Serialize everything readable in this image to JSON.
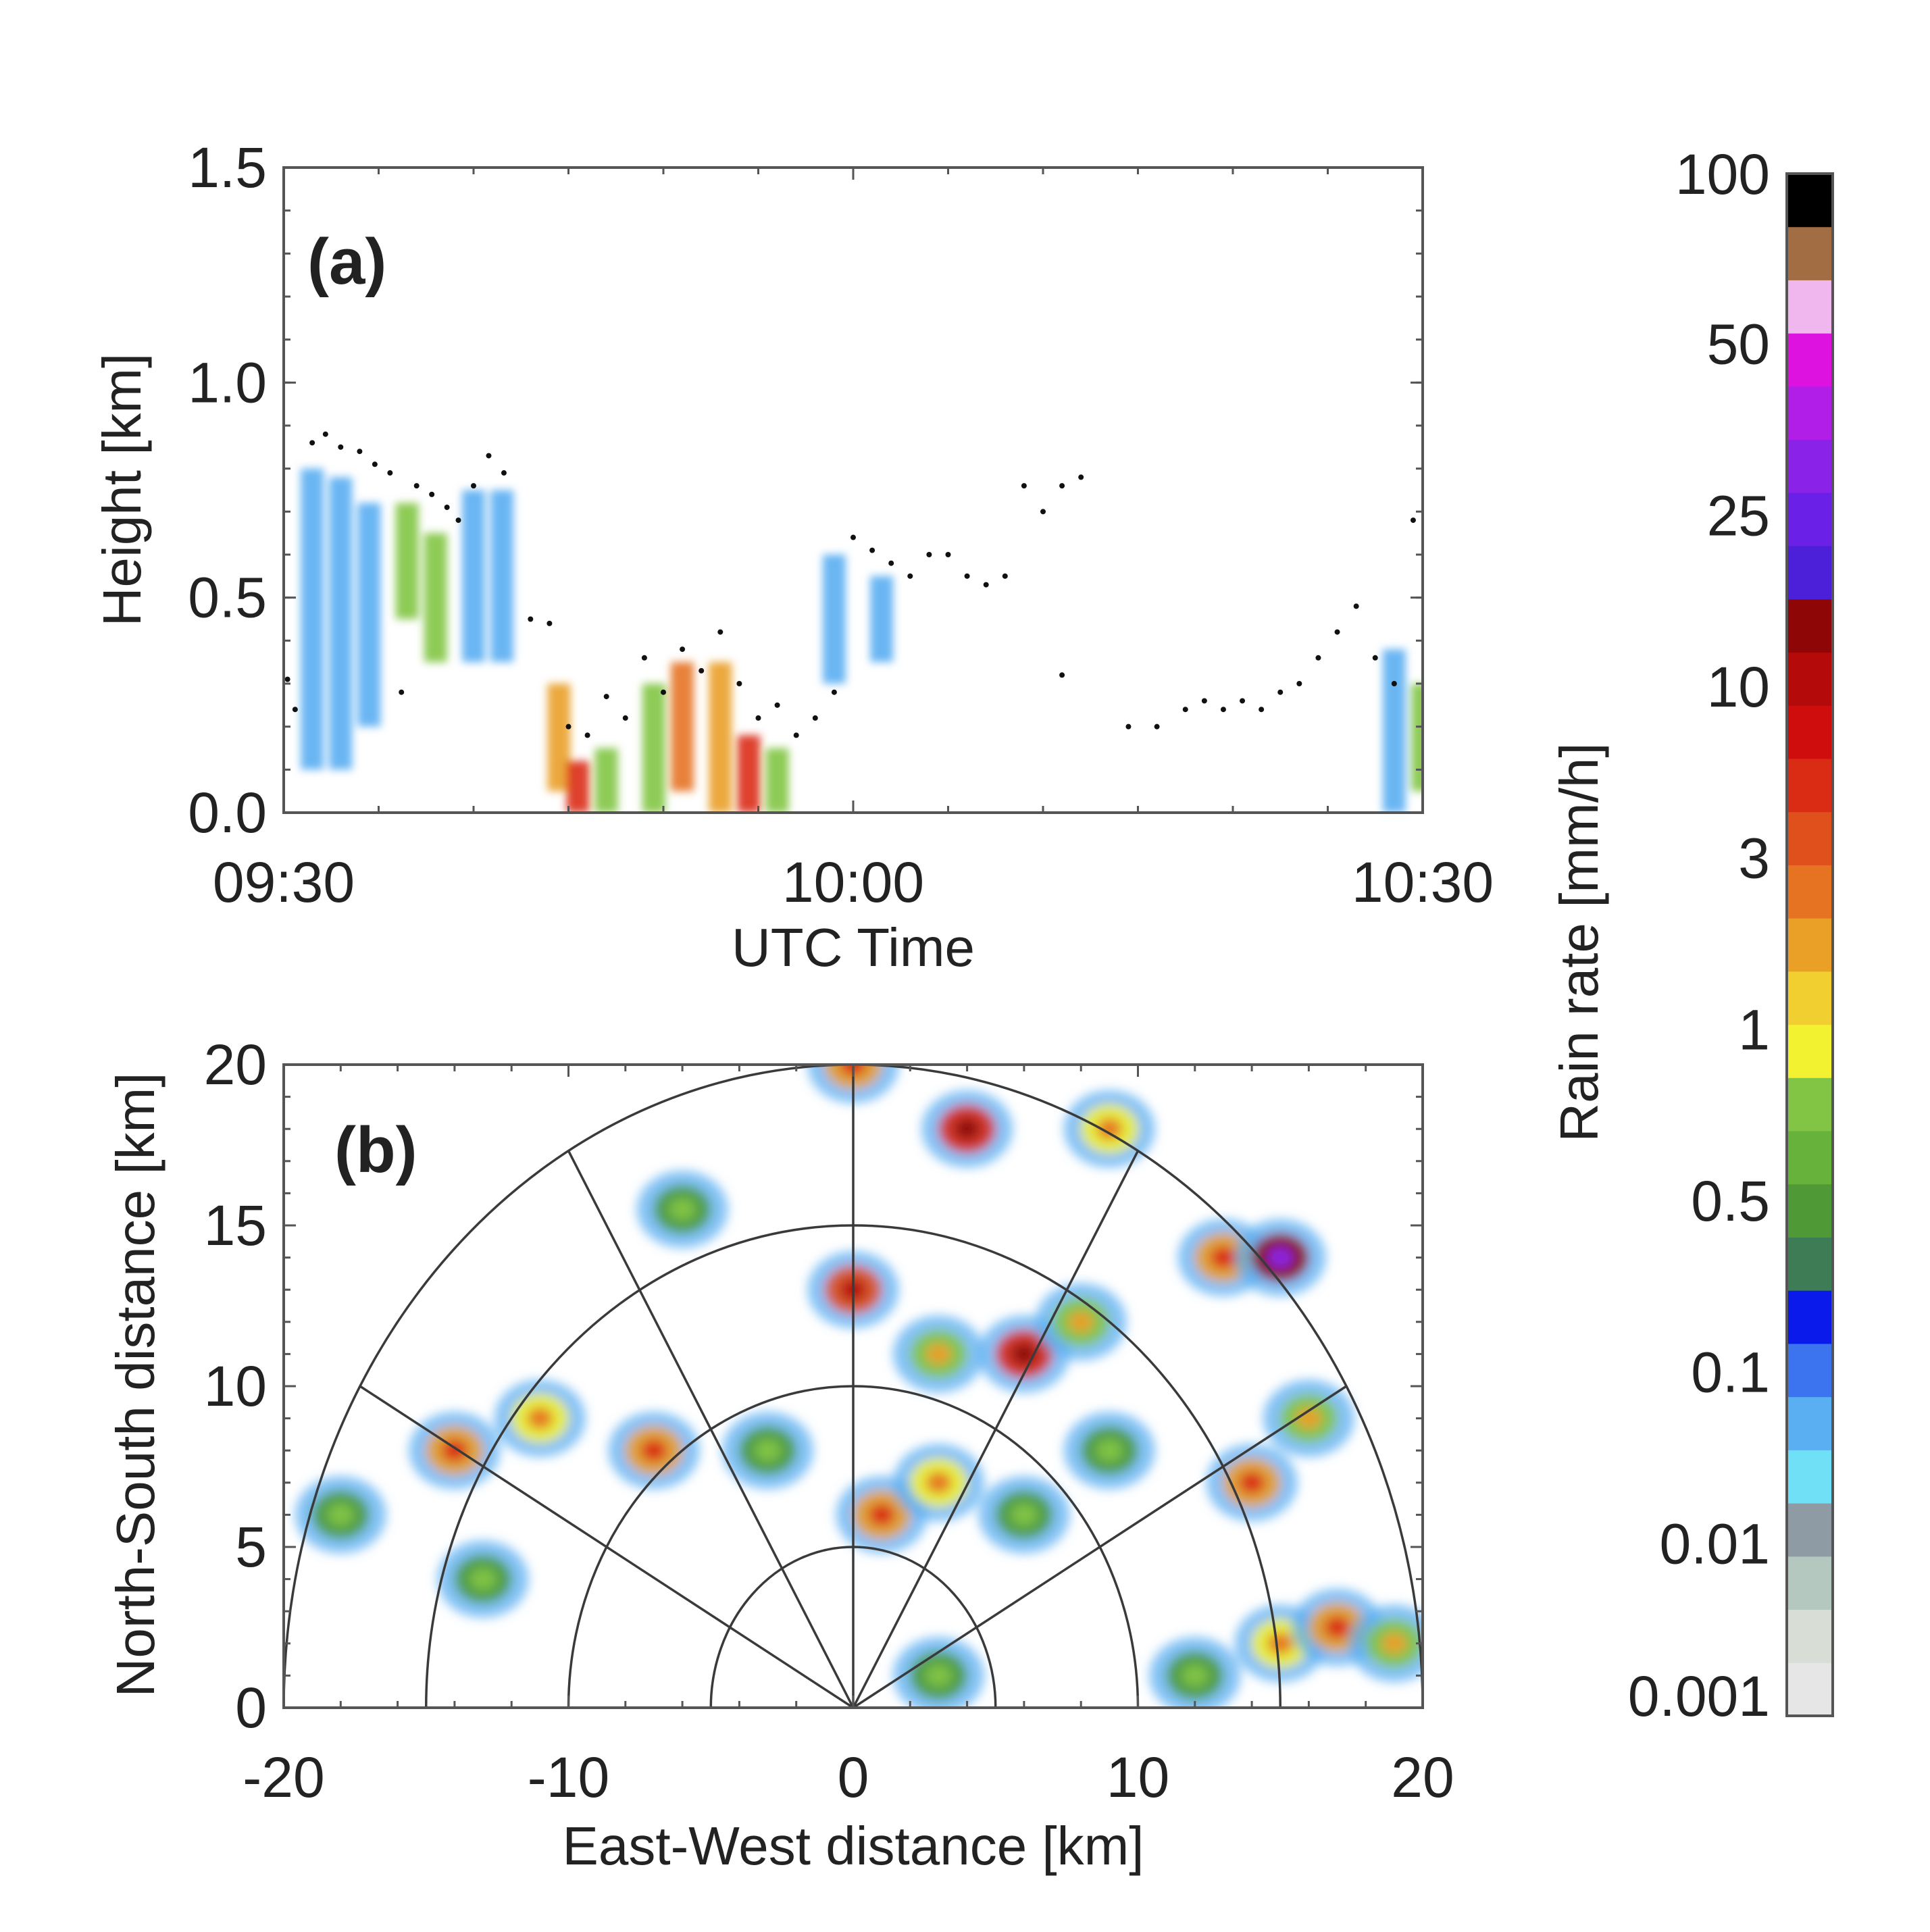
{
  "chart_data": [
    {
      "panel": "(a)",
      "type": "heatmap",
      "xlabel": "UTC Time",
      "ylabel": "Height [km]",
      "x_ticks": [
        "09:30",
        "10:00",
        "10:30"
      ],
      "y_ticks": [
        "0.0",
        "0.5",
        "1.0",
        "1.5"
      ],
      "xlim_minutes_from_0930": [
        0,
        60
      ],
      "ylim": [
        0,
        1.5
      ],
      "colorscale_var": "rain_rate_mm_per_h",
      "cells": [
        {
          "t": 1.5,
          "h_bottom": 0.1,
          "h_top": 0.8,
          "rate": 0.01
        },
        {
          "t": 3.0,
          "h_bottom": 0.1,
          "h_top": 0.78,
          "rate": 0.01
        },
        {
          "t": 4.5,
          "h_bottom": 0.2,
          "h_top": 0.72,
          "rate": 0.01
        },
        {
          "t": 6.5,
          "h_bottom": 0.45,
          "h_top": 0.72,
          "rate": 0.1
        },
        {
          "t": 8.0,
          "h_bottom": 0.35,
          "h_top": 0.65,
          "rate": 0.1
        },
        {
          "t": 10.0,
          "h_bottom": 0.35,
          "h_top": 0.75,
          "rate": 0.01
        },
        {
          "t": 11.5,
          "h_bottom": 0.35,
          "h_top": 0.75,
          "rate": 0.01
        },
        {
          "t": 14.5,
          "h_bottom": 0.05,
          "h_top": 0.3,
          "rate": 0.3
        },
        {
          "t": 15.5,
          "h_bottom": 0.0,
          "h_top": 0.12,
          "rate": 1
        },
        {
          "t": 17.0,
          "h_bottom": 0.0,
          "h_top": 0.15,
          "rate": 0.1
        },
        {
          "t": 19.5,
          "h_bottom": 0.0,
          "h_top": 0.3,
          "rate": 0.1
        },
        {
          "t": 21.0,
          "h_bottom": 0.05,
          "h_top": 0.35,
          "rate": 0.5
        },
        {
          "t": 23.0,
          "h_bottom": 0.0,
          "h_top": 0.35,
          "rate": 0.3
        },
        {
          "t": 24.5,
          "h_bottom": 0.0,
          "h_top": 0.18,
          "rate": 1
        },
        {
          "t": 26.0,
          "h_bottom": 0.0,
          "h_top": 0.15,
          "rate": 0.1
        },
        {
          "t": 29.0,
          "h_bottom": 0.3,
          "h_top": 0.6,
          "rate": 0.01
        },
        {
          "t": 31.5,
          "h_bottom": 0.35,
          "h_top": 0.55,
          "rate": 0.01
        },
        {
          "t": 58.5,
          "h_bottom": 0.0,
          "h_top": 0.38,
          "rate": 0.01
        },
        {
          "t": 60.0,
          "h_bottom": 0.05,
          "h_top": 0.3,
          "rate": 0.1
        }
      ],
      "cloud_top_dots": [
        {
          "t": 0.2,
          "h": 0.31
        },
        {
          "t": 0.6,
          "h": 0.24
        },
        {
          "t": 1.5,
          "h": 0.86
        },
        {
          "t": 2.2,
          "h": 0.88
        },
        {
          "t": 3.0,
          "h": 0.85
        },
        {
          "t": 4.0,
          "h": 0.84
        },
        {
          "t": 4.8,
          "h": 0.81
        },
        {
          "t": 5.6,
          "h": 0.79
        },
        {
          "t": 6.2,
          "h": 0.28
        },
        {
          "t": 7.0,
          "h": 0.76
        },
        {
          "t": 7.8,
          "h": 0.74
        },
        {
          "t": 8.6,
          "h": 0.71
        },
        {
          "t": 9.2,
          "h": 0.68
        },
        {
          "t": 10.0,
          "h": 0.76
        },
        {
          "t": 10.8,
          "h": 0.83
        },
        {
          "t": 11.6,
          "h": 0.79
        },
        {
          "t": 13.0,
          "h": 0.45
        },
        {
          "t": 14.0,
          "h": 0.44
        },
        {
          "t": 15.0,
          "h": 0.2
        },
        {
          "t": 16.0,
          "h": 0.18
        },
        {
          "t": 17.0,
          "h": 0.27
        },
        {
          "t": 18.0,
          "h": 0.22
        },
        {
          "t": 19.0,
          "h": 0.36
        },
        {
          "t": 20.0,
          "h": 0.28
        },
        {
          "t": 21.0,
          "h": 0.38
        },
        {
          "t": 22.0,
          "h": 0.33
        },
        {
          "t": 23.0,
          "h": 0.42
        },
        {
          "t": 24.0,
          "h": 0.3
        },
        {
          "t": 25.0,
          "h": 0.22
        },
        {
          "t": 26.0,
          "h": 0.25
        },
        {
          "t": 27.0,
          "h": 0.18
        },
        {
          "t": 28.0,
          "h": 0.22
        },
        {
          "t": 29.0,
          "h": 0.28
        },
        {
          "t": 30.0,
          "h": 0.64
        },
        {
          "t": 31.0,
          "h": 0.61
        },
        {
          "t": 32.0,
          "h": 0.58
        },
        {
          "t": 33.0,
          "h": 0.55
        },
        {
          "t": 34.0,
          "h": 0.6
        },
        {
          "t": 35.0,
          "h": 0.6
        },
        {
          "t": 36.0,
          "h": 0.55
        },
        {
          "t": 37.0,
          "h": 0.53
        },
        {
          "t": 38.0,
          "h": 0.55
        },
        {
          "t": 39.0,
          "h": 0.76
        },
        {
          "t": 40.0,
          "h": 0.7
        },
        {
          "t": 41.0,
          "h": 0.76
        },
        {
          "t": 42.0,
          "h": 0.78
        },
        {
          "t": 41.0,
          "h": 0.32
        },
        {
          "t": 44.5,
          "h": 0.2
        },
        {
          "t": 46.0,
          "h": 0.2
        },
        {
          "t": 47.5,
          "h": 0.24
        },
        {
          "t": 48.5,
          "h": 0.26
        },
        {
          "t": 49.5,
          "h": 0.24
        },
        {
          "t": 50.5,
          "h": 0.26
        },
        {
          "t": 51.5,
          "h": 0.24
        },
        {
          "t": 52.5,
          "h": 0.28
        },
        {
          "t": 53.5,
          "h": 0.3
        },
        {
          "t": 54.5,
          "h": 0.36
        },
        {
          "t": 55.5,
          "h": 0.42
        },
        {
          "t": 56.5,
          "h": 0.48
        },
        {
          "t": 57.5,
          "h": 0.36
        },
        {
          "t": 58.5,
          "h": 0.3
        },
        {
          "t": 59.5,
          "h": 0.68
        },
        {
          "t": 60.5,
          "h": 0.72
        }
      ]
    },
    {
      "panel": "(b)",
      "type": "heatmap",
      "xlabel": "East-West distance [km]",
      "ylabel": "North-South distance [km]",
      "x_ticks": [
        "-20",
        "-10",
        "0",
        "10",
        "20"
      ],
      "y_ticks": [
        "0",
        "5",
        "10",
        "15",
        "20"
      ],
      "xlim": [
        -20,
        20
      ],
      "ylim": [
        0,
        20
      ],
      "range_rings_km": [
        5,
        10,
        15,
        20
      ],
      "ray_angles_deg_from_north": [
        -60,
        -30,
        0,
        30,
        60
      ],
      "rain_cells": [
        {
          "x": -14,
          "y": 8,
          "rate": 1
        },
        {
          "x": -11,
          "y": 9,
          "rate": 0.5
        },
        {
          "x": -7,
          "y": 8,
          "rate": 1
        },
        {
          "x": -3,
          "y": 8,
          "rate": 0.1
        },
        {
          "x": -18,
          "y": 6,
          "rate": 0.1
        },
        {
          "x": -13,
          "y": 4,
          "rate": 0.1
        },
        {
          "x": 0,
          "y": 20,
          "rate": 1
        },
        {
          "x": 4,
          "y": 18,
          "rate": 3
        },
        {
          "x": 9,
          "y": 18,
          "rate": 0.5
        },
        {
          "x": -6,
          "y": 15.5,
          "rate": 0.1
        },
        {
          "x": 0,
          "y": 13,
          "rate": 2
        },
        {
          "x": 3,
          "y": 11,
          "rate": 0.3
        },
        {
          "x": 6,
          "y": 11,
          "rate": 3
        },
        {
          "x": 8,
          "y": 12,
          "rate": 0.3
        },
        {
          "x": 13,
          "y": 14,
          "rate": 1
        },
        {
          "x": 15,
          "y": 14,
          "rate": 10
        },
        {
          "x": 1,
          "y": 6,
          "rate": 1
        },
        {
          "x": 3,
          "y": 7,
          "rate": 0.5
        },
        {
          "x": 6,
          "y": 6,
          "rate": 0.1
        },
        {
          "x": 9,
          "y": 8,
          "rate": 0.1
        },
        {
          "x": 14,
          "y": 7,
          "rate": 1
        },
        {
          "x": 16,
          "y": 9,
          "rate": 0.3
        },
        {
          "x": 12,
          "y": 1,
          "rate": 0.1
        },
        {
          "x": 15,
          "y": 2,
          "rate": 0.5
        },
        {
          "x": 17,
          "y": 2.5,
          "rate": 1
        },
        {
          "x": 19,
          "y": 2,
          "rate": 0.3
        },
        {
          "x": 3,
          "y": 1,
          "rate": 0.1
        }
      ]
    }
  ],
  "panel_a_label": "(a)",
  "panel_b_label": "(b)",
  "colorbar": {
    "title": "Rain rate [mm/h]",
    "tick_labels": [
      "100",
      "50",
      "25",
      "10",
      "3",
      "1",
      "0.5",
      "0.1",
      "0.01",
      "0.001"
    ],
    "bin_colors": [
      "#e6e6e6",
      "#d8ded6",
      "#b5c8c0",
      "#8e9aa4",
      "#70e0f6",
      "#5aaef2",
      "#3c73ee",
      "#0a1aea",
      "#3e7c55",
      "#4f9a37",
      "#66b23a",
      "#82c544",
      "#f2f230",
      "#f2cf30",
      "#eaa027",
      "#e67322",
      "#e0501c",
      "#da2b14",
      "#d00d0d",
      "#b40a0a",
      "#8f0606",
      "#4c1fd8",
      "#6a20e6",
      "#8a22e8",
      "#b01ee8",
      "#de12e0",
      "#f0b6ee",
      "#a36d44",
      "#000000"
    ]
  }
}
